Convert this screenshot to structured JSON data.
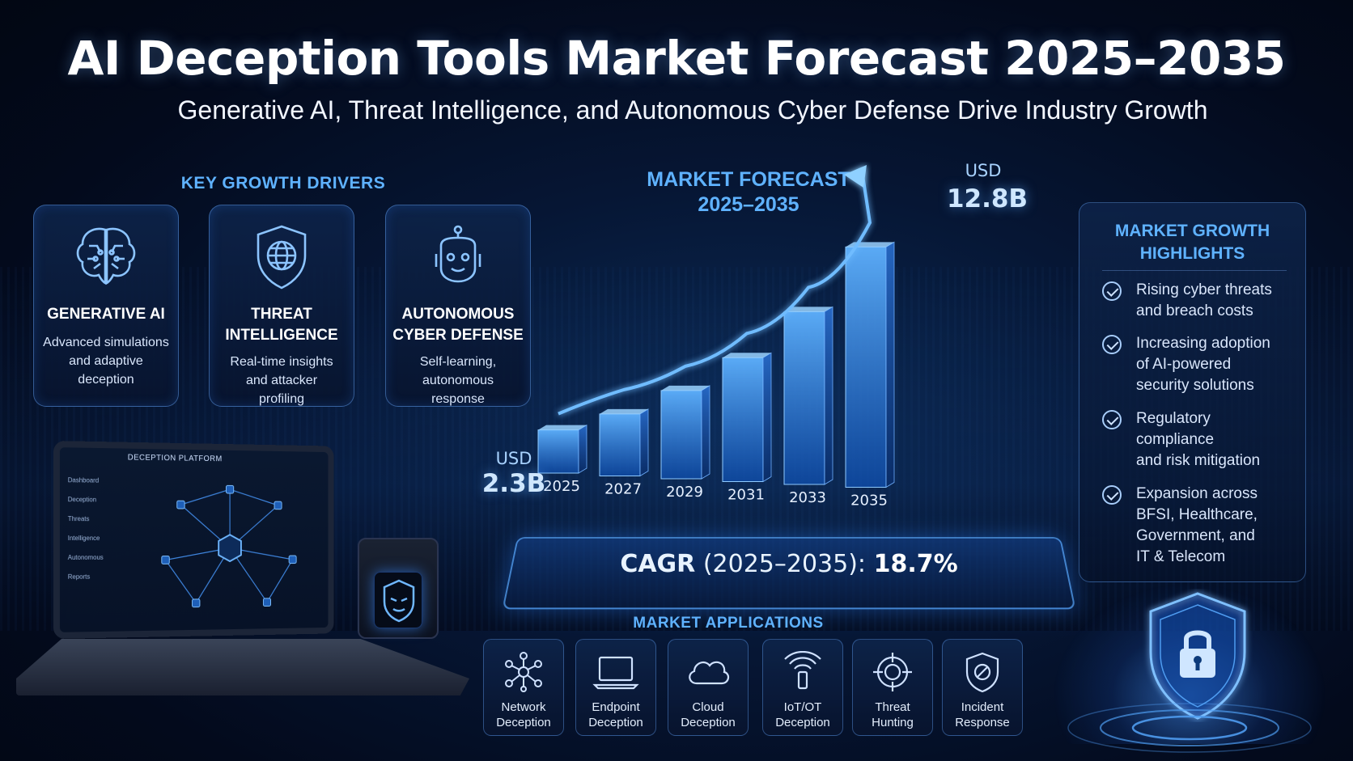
{
  "title": "AI Deception Tools Market Forecast 2025–2035",
  "subtitle": "Generative AI, Threat Intelligence, and Autonomous Cyber Defense Drive Industry Growth",
  "drivers": {
    "heading": "KEY GROWTH DRIVERS",
    "items": [
      {
        "title_line1": "GENERATIVE AI",
        "title_line2": "",
        "desc": [
          "Advanced simulations",
          "and adaptive",
          "deception"
        ],
        "icon": "brain-circuit-icon"
      },
      {
        "title_line1": "THREAT",
        "title_line2": "INTELLIGENCE",
        "desc": [
          "Real-time insights",
          "and attacker",
          "profiling"
        ],
        "icon": "shield-globe-icon"
      },
      {
        "title_line1": "AUTONOMOUS",
        "title_line2": "CYBER DEFENSE",
        "desc": [
          "Self-learning,",
          "autonomous",
          "response"
        ],
        "icon": "robot-head-icon"
      }
    ]
  },
  "laptop": {
    "screen_title": "DECEPTION PLATFORM",
    "menu": [
      "Dashboard",
      "Deception",
      "Threats",
      "Intelligence",
      "Autonomous",
      "Reports"
    ]
  },
  "chart_data": {
    "type": "bar",
    "title": "MARKET FORECAST",
    "subtitle": "2025–2035",
    "categories": [
      "2025",
      "2027",
      "2029",
      "2031",
      "2033",
      "2035"
    ],
    "series": [
      {
        "values": [
          2.3,
          3.3,
          4.7,
          6.6,
          9.2,
          12.8
        ]
      }
    ],
    "unit": "USD B",
    "start_label": {
      "currency": "USD",
      "value": "2.3B"
    },
    "end_label": {
      "currency": "USD",
      "value": "12.8B"
    },
    "trend_arrow": true,
    "ylim": [
      0,
      14
    ],
    "cagr_label": "CAGR",
    "cagr_period": "(2025–2035):",
    "cagr_value": "18.7%"
  },
  "highlights": {
    "heading_line1": "MARKET GROWTH",
    "heading_line2": "HIGHLIGHTS",
    "items": [
      [
        "Rising cyber threats",
        "and breach costs"
      ],
      [
        "Increasing adoption",
        "of AI-powered",
        "security solutions"
      ],
      [
        "Regulatory",
        "compliance",
        "and risk mitigation"
      ],
      [
        "Expansion across",
        "BFSI, Healthcare,",
        "Government, and",
        "IT & Telecom"
      ]
    ]
  },
  "applications": {
    "heading": "MARKET APPLICATIONS",
    "items": [
      {
        "line1": "Network",
        "line2": "Deception",
        "icon": "network-nodes-icon"
      },
      {
        "line1": "Endpoint",
        "line2": "Deception",
        "icon": "laptop-icon"
      },
      {
        "line1": "Cloud",
        "line2": "Deception",
        "icon": "cloud-icon"
      },
      {
        "line1": "IoT/OT",
        "line2": "Deception",
        "icon": "wireless-sensor-icon"
      },
      {
        "line1": "Threat",
        "line2": "Hunting",
        "icon": "crosshair-icon"
      },
      {
        "line1": "Incident",
        "line2": "Response",
        "icon": "shield-ban-icon"
      }
    ]
  },
  "colors": {
    "accent": "#5fb2ff",
    "background": "#04102a",
    "bar": "#2f8cff"
  }
}
